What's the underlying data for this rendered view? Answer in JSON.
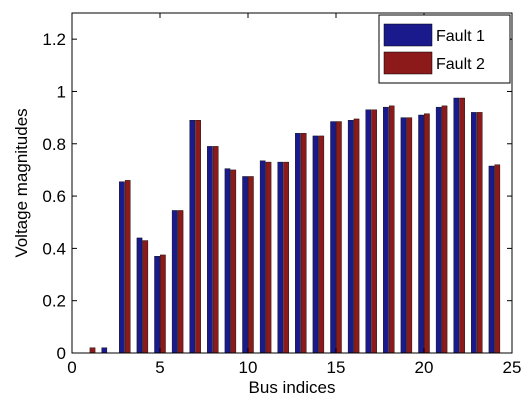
{
  "chart_data": {
    "type": "bar",
    "title": "",
    "xlabel": "Bus indices",
    "ylabel": "Voltage magnitudes",
    "xlim": [
      0,
      25
    ],
    "ylim": [
      0,
      1.3
    ],
    "xticks": [
      0,
      5,
      10,
      15,
      20,
      25
    ],
    "yticks": [
      0,
      0.2,
      0.4,
      0.6,
      0.8,
      1,
      1.2
    ],
    "xtick_labels": [
      "0",
      "5",
      "10",
      "15",
      "20",
      "25"
    ],
    "ytick_labels": [
      "0",
      "0.2",
      "0.4",
      "0.6",
      "0.8",
      "1",
      "1.2"
    ],
    "grid": false,
    "legend_position": "top-right",
    "x": [
      1,
      2,
      3,
      4,
      5,
      6,
      7,
      8,
      9,
      10,
      11,
      12,
      13,
      14,
      15,
      16,
      17,
      18,
      19,
      20,
      21,
      22,
      23,
      24
    ],
    "series": [
      {
        "name": "Fault 1",
        "color": "#1a1a8c",
        "values": [
          0.0,
          0.02,
          0.655,
          0.44,
          0.37,
          0.545,
          0.89,
          0.79,
          0.705,
          0.675,
          0.735,
          0.73,
          0.84,
          0.83,
          0.885,
          0.89,
          0.93,
          0.94,
          0.9,
          0.91,
          0.94,
          0.975,
          0.92,
          0.715
        ]
      },
      {
        "name": "Fault 2",
        "color": "#8c1a1a",
        "values": [
          0.02,
          0.0,
          0.66,
          0.43,
          0.375,
          0.545,
          0.89,
          0.79,
          0.7,
          0.675,
          0.73,
          0.73,
          0.84,
          0.83,
          0.885,
          0.895,
          0.93,
          0.945,
          0.9,
          0.915,
          0.945,
          0.975,
          0.92,
          0.72
        ]
      }
    ]
  }
}
